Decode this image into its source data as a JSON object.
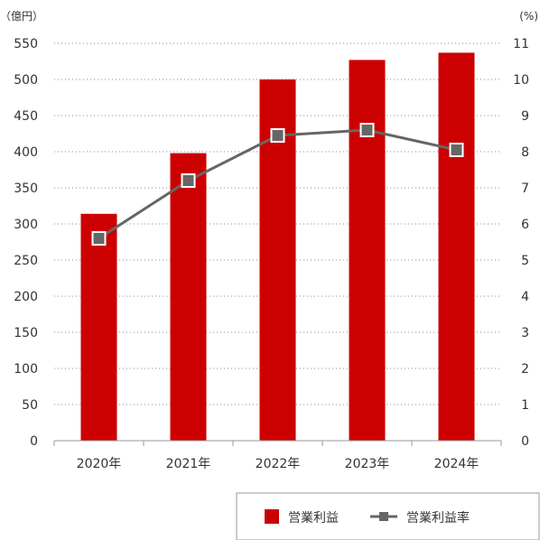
{
  "chart_data": {
    "type": "bar",
    "categories": [
      "2020年",
      "2021年",
      "2022年",
      "2023年",
      "2024年"
    ],
    "series": [
      {
        "name": "営業利益",
        "type": "bar",
        "axis": "left",
        "color": "#cc0000",
        "values": [
          314,
          398,
          500,
          527,
          537
        ]
      },
      {
        "name": "営業利益率",
        "type": "line",
        "axis": "right",
        "color": "#666666",
        "values": [
          5.6,
          7.2,
          8.45,
          8.6,
          8.05
        ]
      }
    ],
    "y_left": {
      "unit": "（億円）",
      "min": 0,
      "max": 550,
      "ticks": [
        0,
        50,
        100,
        150,
        200,
        250,
        300,
        350,
        400,
        450,
        500,
        550
      ]
    },
    "y_right": {
      "unit": "(%)",
      "min": 0,
      "max": 11,
      "ticks": [
        0,
        1,
        2,
        3,
        4,
        5,
        6,
        7,
        8,
        9,
        10,
        11
      ]
    },
    "grid": true,
    "legend_position": "bottom-right"
  }
}
